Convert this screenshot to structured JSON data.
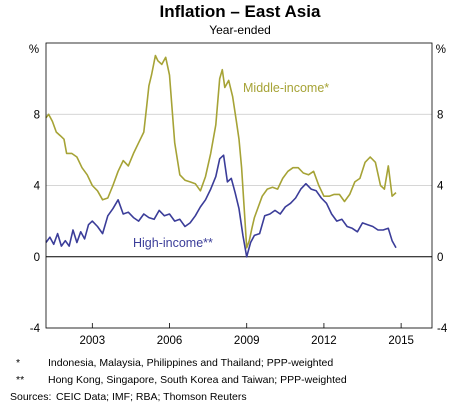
{
  "colors": {
    "middle": "#a6a336",
    "high": "#3b3d99",
    "grid": "#c8c8c8",
    "axis": "#000000"
  },
  "chart_data": {
    "type": "line",
    "title": "Inflation – East Asia",
    "subtitle": "Year-ended",
    "y_unit_left": "%",
    "y_unit_right": "%",
    "xlim": [
      2001.2,
      2016.2
    ],
    "ylim": [
      -4,
      12
    ],
    "y_ticks": [
      -4,
      0,
      4,
      8
    ],
    "x_ticks": [
      2003,
      2006,
      2009,
      2012,
      2015
    ],
    "x_tick_labels": [
      "2003",
      "2006",
      "2009",
      "2012",
      "2015"
    ],
    "grid": true,
    "series": [
      {
        "name": "Middle-income*",
        "label": "Middle-income*",
        "x": [
          2001.2,
          2001.3,
          2001.45,
          2001.6,
          2001.75,
          2001.9,
          2002.0,
          2002.2,
          2002.4,
          2002.6,
          2002.8,
          2003.0,
          2003.2,
          2003.4,
          2003.6,
          2003.8,
          2004.0,
          2004.2,
          2004.4,
          2004.6,
          2004.8,
          2005.0,
          2005.1,
          2005.2,
          2005.3,
          2005.45,
          2005.55,
          2005.7,
          2005.85,
          2006.0,
          2006.2,
          2006.4,
          2006.6,
          2006.8,
          2007.0,
          2007.2,
          2007.4,
          2007.6,
          2007.8,
          2007.95,
          2008.05,
          2008.15,
          2008.3,
          2008.45,
          2008.6,
          2008.7,
          2008.8,
          2008.9,
          2009.0,
          2009.1,
          2009.2,
          2009.3,
          2009.45,
          2009.6,
          2009.8,
          2010.0,
          2010.2,
          2010.4,
          2010.6,
          2010.8,
          2011.0,
          2011.2,
          2011.4,
          2011.6,
          2011.8,
          2012.0,
          2012.2,
          2012.4,
          2012.6,
          2012.8,
          2013.0,
          2013.2,
          2013.4,
          2013.6,
          2013.8,
          2014.0,
          2014.2,
          2014.35,
          2014.5,
          2014.65,
          2014.8
        ],
        "values": [
          7.8,
          8.0,
          7.6,
          7.0,
          6.8,
          6.6,
          5.8,
          5.8,
          5.6,
          5.0,
          4.6,
          4.0,
          3.7,
          3.2,
          3.3,
          4.0,
          4.8,
          5.4,
          5.1,
          5.8,
          6.4,
          7.0,
          8.3,
          9.6,
          10.2,
          11.3,
          11.0,
          10.8,
          11.2,
          10.2,
          6.4,
          4.6,
          4.3,
          4.2,
          4.1,
          3.7,
          4.5,
          5.8,
          7.4,
          10.0,
          10.5,
          9.5,
          9.9,
          9.0,
          7.6,
          6.6,
          5.0,
          2.8,
          0.5,
          0.9,
          1.6,
          2.2,
          2.8,
          3.4,
          3.8,
          3.9,
          3.8,
          4.4,
          4.8,
          5.0,
          5.0,
          4.7,
          4.6,
          4.8,
          4.0,
          3.4,
          3.4,
          3.5,
          3.5,
          3.1,
          3.5,
          4.2,
          4.4,
          5.3,
          5.6,
          5.3,
          4.0,
          3.8,
          5.1,
          3.4,
          3.6
        ]
      },
      {
        "name": "High-income**",
        "label": "High-income**",
        "x": [
          2001.2,
          2001.35,
          2001.5,
          2001.65,
          2001.8,
          2001.95,
          2002.1,
          2002.25,
          2002.4,
          2002.55,
          2002.7,
          2002.85,
          2003.0,
          2003.2,
          2003.4,
          2003.6,
          2003.8,
          2004.0,
          2004.2,
          2004.4,
          2004.6,
          2004.8,
          2005.0,
          2005.2,
          2005.4,
          2005.6,
          2005.8,
          2006.0,
          2006.2,
          2006.4,
          2006.6,
          2006.8,
          2007.0,
          2007.2,
          2007.4,
          2007.6,
          2007.8,
          2007.95,
          2008.1,
          2008.25,
          2008.4,
          2008.55,
          2008.7,
          2008.85,
          2009.0,
          2009.15,
          2009.3,
          2009.5,
          2009.7,
          2009.9,
          2010.1,
          2010.3,
          2010.5,
          2010.7,
          2010.9,
          2011.1,
          2011.3,
          2011.5,
          2011.7,
          2011.9,
          2012.1,
          2012.3,
          2012.5,
          2012.7,
          2012.9,
          2013.1,
          2013.3,
          2013.5,
          2013.7,
          2013.9,
          2014.1,
          2014.3,
          2014.5,
          2014.65,
          2014.8
        ],
        "values": [
          0.8,
          1.1,
          0.7,
          1.3,
          0.6,
          0.9,
          0.6,
          1.5,
          0.8,
          1.4,
          1.0,
          1.8,
          2.0,
          1.7,
          1.3,
          2.3,
          2.7,
          3.2,
          2.4,
          2.5,
          2.2,
          2.0,
          2.4,
          2.2,
          2.1,
          2.6,
          2.3,
          2.4,
          2.0,
          2.1,
          1.7,
          1.9,
          2.3,
          2.8,
          3.2,
          3.8,
          4.5,
          5.5,
          5.7,
          4.2,
          4.4,
          3.6,
          2.7,
          1.2,
          0.0,
          0.8,
          1.2,
          1.3,
          2.3,
          2.4,
          2.6,
          2.4,
          2.8,
          3.0,
          3.3,
          3.8,
          4.1,
          3.8,
          3.7,
          3.3,
          3.0,
          2.4,
          2.0,
          2.1,
          1.7,
          1.6,
          1.4,
          1.9,
          1.8,
          1.7,
          1.5,
          1.5,
          1.6,
          0.9,
          0.5
        ]
      }
    ]
  },
  "notes": [
    {
      "mark": "*",
      "text": "Indonesia, Malaysia, Philippines and Thailand; PPP-weighted"
    },
    {
      "mark": "**",
      "text": "Hong Kong, Singapore, South Korea and Taiwan; PPP-weighted"
    }
  ],
  "sources": {
    "label": "Sources:",
    "text": "CEIC Data; IMF; RBA; Thomson Reuters"
  }
}
